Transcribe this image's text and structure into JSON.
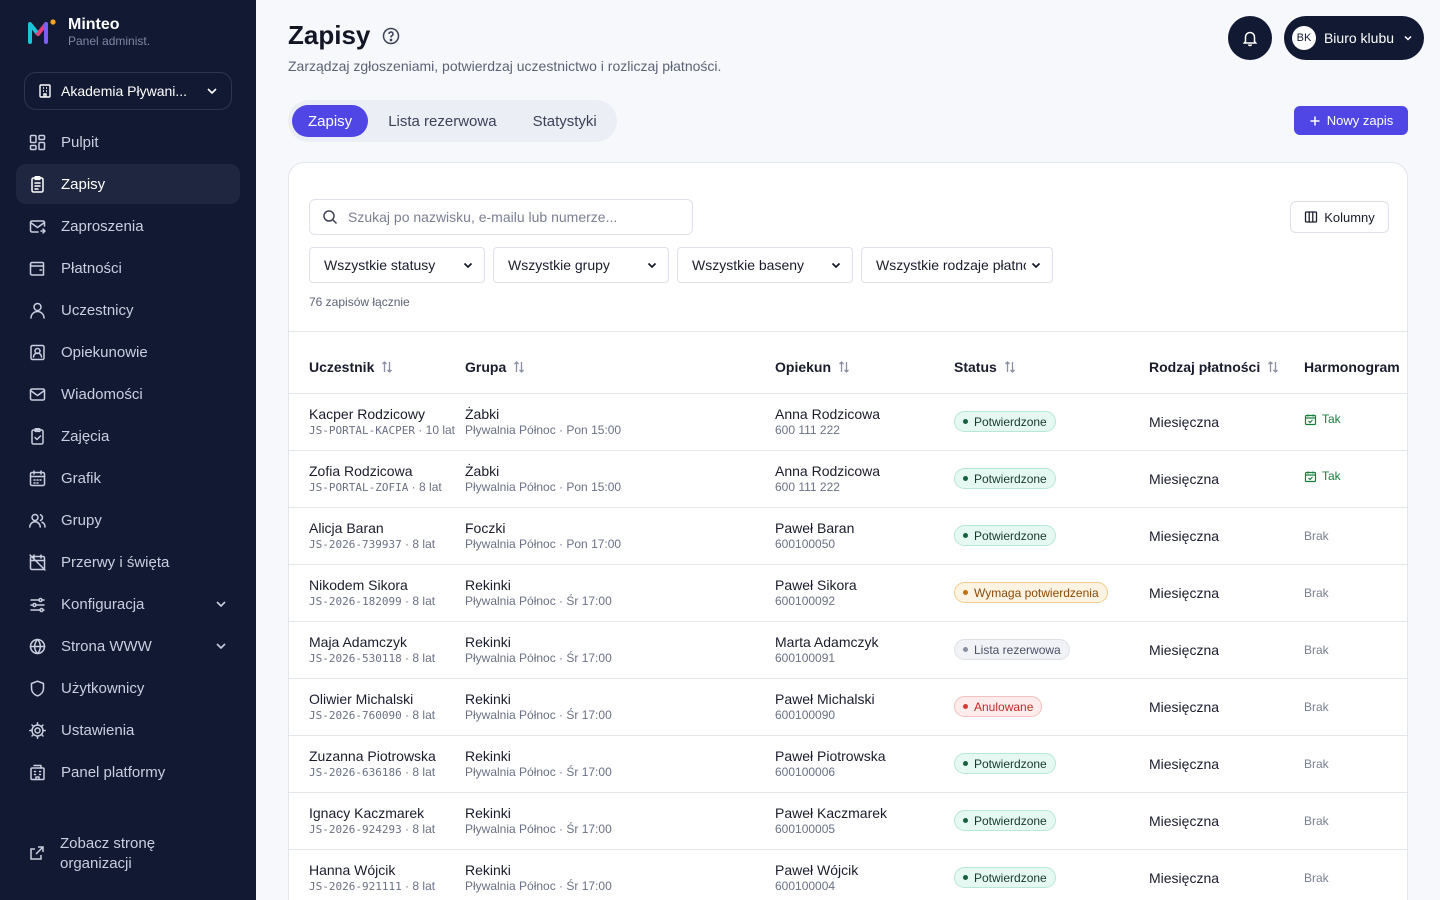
{
  "brand": {
    "name": "Minteo",
    "subtitle": "Panel administ."
  },
  "org_selector": {
    "label": "Akademia Pływani..."
  },
  "nav": {
    "items": [
      {
        "label": "Pulpit",
        "icon": "dashboard-icon"
      },
      {
        "label": "Zapisy",
        "icon": "clipboard-icon",
        "active": true
      },
      {
        "label": "Zaproszenia",
        "icon": "mail-send-icon"
      },
      {
        "label": "Płatności",
        "icon": "wallet-icon"
      },
      {
        "label": "Uczestnicy",
        "icon": "user-icon"
      },
      {
        "label": "Opiekunowie",
        "icon": "contact-card-icon"
      },
      {
        "label": "Wiadomości",
        "icon": "mail-icon"
      },
      {
        "label": "Zajęcia",
        "icon": "clipboard-check-icon"
      },
      {
        "label": "Grafik",
        "icon": "calendar-icon"
      },
      {
        "label": "Grupy",
        "icon": "users-icon"
      },
      {
        "label": "Przerwy i święta",
        "icon": "calendar-off-icon"
      },
      {
        "label": "Konfiguracja",
        "icon": "sliders-icon",
        "expandable": true
      },
      {
        "label": "Strona WWW",
        "icon": "globe-icon",
        "expandable": true
      },
      {
        "label": "Użytkownicy",
        "icon": "shield-icon"
      },
      {
        "label": "Ustawienia",
        "icon": "gear-icon"
      },
      {
        "label": "Panel platformy",
        "icon": "building-icon"
      }
    ],
    "footer_link": "Zobacz stronę organizacji"
  },
  "header": {
    "title": "Zapisy",
    "subtitle": "Zarządzaj zgłoszeniami, potwierdzaj uczestnictwo i rozliczaj płatności.",
    "user": {
      "initials": "BK",
      "name": "Biuro klubu"
    }
  },
  "tabs": [
    {
      "label": "Zapisy",
      "active": true
    },
    {
      "label": "Lista rezerwowa"
    },
    {
      "label": "Statystyki"
    }
  ],
  "new_button": "Nowy zapis",
  "search": {
    "placeholder": "Szukaj po nazwisku, e-mailu lub numerze..."
  },
  "columns_button": "Kolumny",
  "filters": [
    "Wszystkie statusy",
    "Wszystkie grupy",
    "Wszystkie baseny",
    "Wszystkie rodzaje płatności"
  ],
  "total_count": "76 zapisów łącznie",
  "table": {
    "headers": [
      "Uczestnik",
      "Grupa",
      "Opiekun",
      "Status",
      "Rodzaj płatności",
      "Harmonogram"
    ],
    "rows": [
      {
        "name": "Kacper Rodzicowy",
        "code": "JS-PORTAL-KACPER",
        "age": "10 lat",
        "group": "Żabki",
        "group_detail": "Pływalnia Północ · Pon 15:00",
        "guardian": "Anna Rodzicowa",
        "phone": "600 111 222",
        "status": "Potwierdzone",
        "status_type": "green",
        "payment": "Miesięczna",
        "schedule": "Tak"
      },
      {
        "name": "Zofia Rodzicowa",
        "code": "JS-PORTAL-ZOFIA",
        "age": "8 lat",
        "group": "Żabki",
        "group_detail": "Pływalnia Północ · Pon 15:00",
        "guardian": "Anna Rodzicowa",
        "phone": "600 111 222",
        "status": "Potwierdzone",
        "status_type": "green",
        "payment": "Miesięczna",
        "schedule": "Tak"
      },
      {
        "name": "Alicja Baran",
        "code": "JS-2026-739937",
        "age": "8 lat",
        "group": "Foczki",
        "group_detail": "Pływalnia Północ · Pon 17:00",
        "guardian": "Paweł Baran",
        "phone": "600100050",
        "status": "Potwierdzone",
        "status_type": "green",
        "payment": "Miesięczna",
        "schedule": "Brak"
      },
      {
        "name": "Nikodem Sikora",
        "code": "JS-2026-182099",
        "age": "8 lat",
        "group": "Rekinki",
        "group_detail": "Pływalnia Północ · Śr 17:00",
        "guardian": "Paweł Sikora",
        "phone": "600100092",
        "status": "Wymaga potwierdzenia",
        "status_type": "amber",
        "payment": "Miesięczna",
        "schedule": "Brak"
      },
      {
        "name": "Maja Adamczyk",
        "code": "JS-2026-530118",
        "age": "8 lat",
        "group": "Rekinki",
        "group_detail": "Pływalnia Północ · Śr 17:00",
        "guardian": "Marta Adamczyk",
        "phone": "600100091",
        "status": "Lista rezerwowa",
        "status_type": "gray",
        "payment": "Miesięczna",
        "schedule": "Brak"
      },
      {
        "name": "Oliwier Michalski",
        "code": "JS-2026-760090",
        "age": "8 lat",
        "group": "Rekinki",
        "group_detail": "Pływalnia Północ · Śr 17:00",
        "guardian": "Paweł Michalski",
        "phone": "600100090",
        "status": "Anulowane",
        "status_type": "red",
        "payment": "Miesięczna",
        "schedule": "Brak"
      },
      {
        "name": "Zuzanna Piotrowska",
        "code": "JS-2026-636186",
        "age": "8 lat",
        "group": "Rekinki",
        "group_detail": "Pływalnia Północ · Śr 17:00",
        "guardian": "Paweł Piotrowska",
        "phone": "600100006",
        "status": "Potwierdzone",
        "status_type": "green",
        "payment": "Miesięczna",
        "schedule": "Brak"
      },
      {
        "name": "Ignacy Kaczmarek",
        "code": "JS-2026-924293",
        "age": "8 lat",
        "group": "Rekinki",
        "group_detail": "Pływalnia Północ · Śr 17:00",
        "guardian": "Paweł Kaczmarek",
        "phone": "600100005",
        "status": "Potwierdzone",
        "status_type": "green",
        "payment": "Miesięczna",
        "schedule": "Brak"
      },
      {
        "name": "Hanna Wójcik",
        "code": "JS-2026-921111",
        "age": "8 lat",
        "group": "Rekinki",
        "group_detail": "Pływalnia Północ · Śr 17:00",
        "guardian": "Paweł Wójcik",
        "phone": "600100004",
        "status": "Potwierdzone",
        "status_type": "green",
        "payment": "Miesięczna",
        "schedule": "Brak"
      }
    ]
  },
  "colors": {
    "sidebar_bg": "#121a33",
    "accent": "#4f46e5"
  }
}
